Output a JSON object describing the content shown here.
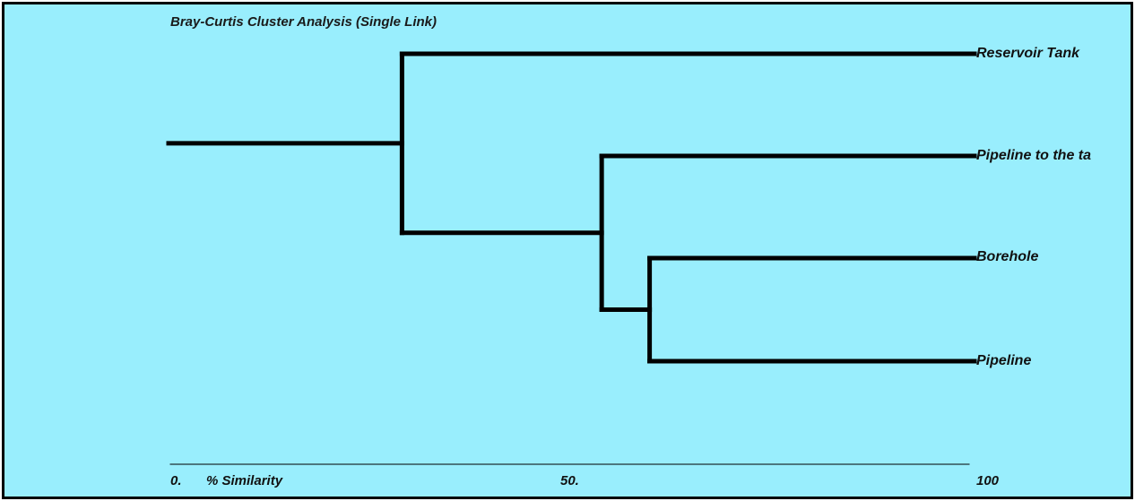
{
  "title": "Bray-Curtis Cluster Analysis (Single Link)",
  "colors": {
    "background": "#99eefd",
    "lines": "#000000",
    "border": "#000000"
  },
  "leaves": [
    {
      "id": "reservoir",
      "label": "Reservoir Tank"
    },
    {
      "id": "pipeline-tank",
      "label": "Pipeline to the ta"
    },
    {
      "id": "borehole",
      "label": "Borehole"
    },
    {
      "id": "pipeline",
      "label": "Pipeline"
    }
  ],
  "axis": {
    "min_label": "0.",
    "title": "% Similarity",
    "mid_label": "50.",
    "max_label": "100"
  },
  "merges": [
    {
      "name": "borehole-pipeline",
      "similarity": 60,
      "children": [
        "borehole",
        "pipeline"
      ]
    },
    {
      "name": "pipeline-tank-cluster",
      "similarity": 54,
      "children": [
        "pipeline-tank",
        "borehole-pipeline"
      ]
    },
    {
      "name": "root-cluster",
      "similarity": 29,
      "children": [
        "reservoir",
        "pipeline-tank-cluster"
      ]
    }
  ]
}
